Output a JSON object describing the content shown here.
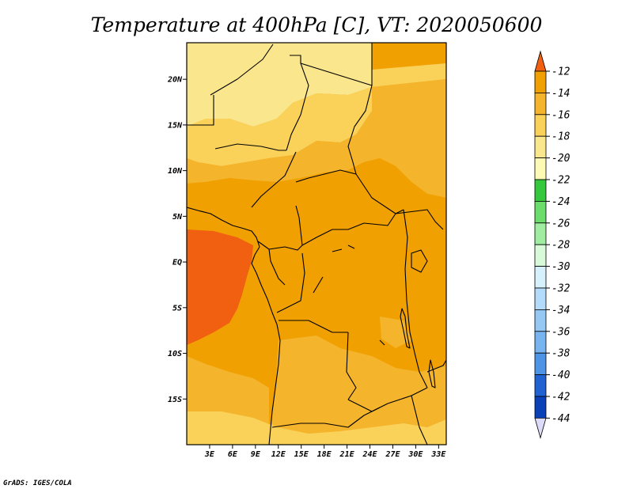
{
  "chart_data": {
    "type": "heatmap",
    "title": "Temperature at 400hPa [C], VT: 2020050600",
    "credit": "GrADS: IGES/COLA",
    "lon_range": [
      0,
      34
    ],
    "lat_range": [
      -20,
      24
    ],
    "x_tick_labels": [
      "3E",
      "6E",
      "9E",
      "12E",
      "15E",
      "18E",
      "21E",
      "24E",
      "27E",
      "30E",
      "33E"
    ],
    "x_tick_values": [
      3,
      6,
      9,
      12,
      15,
      18,
      21,
      24,
      27,
      30,
      33
    ],
    "y_tick_labels": [
      "20N",
      "15N",
      "10N",
      "5N",
      "EQ",
      "5S",
      "10S",
      "15S"
    ],
    "y_tick_values": [
      20,
      15,
      10,
      5,
      0,
      -5,
      -10,
      -15
    ],
    "colorbar": {
      "labels": [
        "-12",
        "-14",
        "-16",
        "-18",
        "-20",
        "-22",
        "-24",
        "-26",
        "-28",
        "-30",
        "-32",
        "-34",
        "-36",
        "-38",
        "-40",
        "-42",
        "-44"
      ],
      "colors": [
        "#f06010",
        "#f0a000",
        "#f4b42c",
        "#fad25a",
        "#fae68c",
        "#fcfab4",
        "#36c83c",
        "#6cdc6c",
        "#a0eca0",
        "#d8fad8",
        "#d6f0fc",
        "#b4dcfa",
        "#96c8f4",
        "#78b4f0",
        "#4e94e6",
        "#2062d2",
        "#0a40b8",
        "#000a82"
      ],
      "over_color": "#f06010",
      "under_color": "#dcdcfa"
    },
    "fields": {
      "background": "#f0a000",
      "zones": [
        {
          "name": "northern-sahara-warm-band",
          "level": "-20",
          "color": "#fae68c"
        },
        {
          "name": "sahel-band",
          "level": "-18",
          "color": "#fad25a"
        },
        {
          "name": "northern-band",
          "level": "-16",
          "color": "#f4b42c"
        },
        {
          "name": "central-africa",
          "level": "-14",
          "color": "#f0a000"
        },
        {
          "name": "gulf-of-guinea-warm-core",
          "level": "-12",
          "color": "#f06010"
        },
        {
          "name": "southern-band",
          "level": "-16",
          "color": "#f4b42c"
        },
        {
          "name": "southern-edge",
          "level": "-18",
          "color": "#fad25a"
        }
      ]
    }
  }
}
